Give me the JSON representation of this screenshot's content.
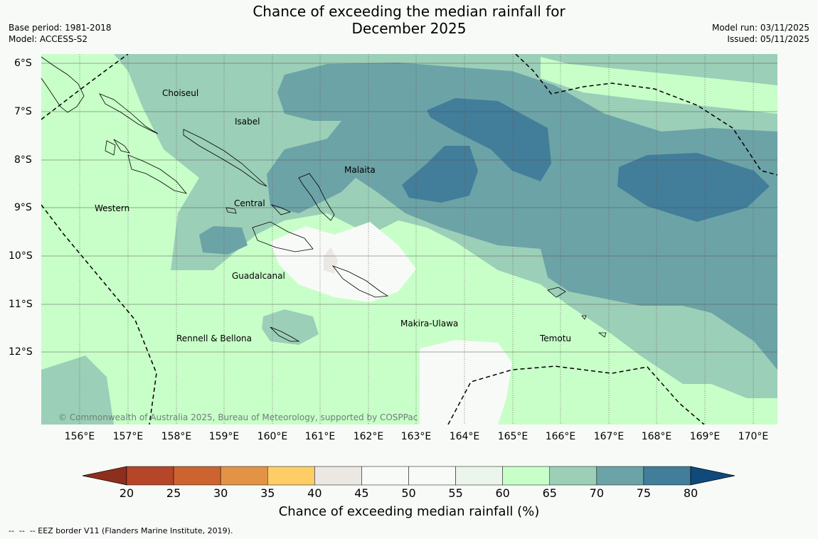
{
  "title": {
    "line1": "Chance of exceeding the median rainfall for",
    "line2": "December 2025"
  },
  "meta": {
    "base_period": "Base period: 1981-2018",
    "model": "Model: ACCESS-S2",
    "model_run": "Model run: 03/11/2025",
    "issued": "Issued: 05/11/2025"
  },
  "map": {
    "lat_labels": [
      "6°S",
      "7°S",
      "8°S",
      "9°S",
      "10°S",
      "11°S",
      "12°S"
    ],
    "lon_labels": [
      "156°E",
      "157°E",
      "158°E",
      "159°E",
      "160°E",
      "161°E",
      "162°E",
      "163°E",
      "164°E",
      "165°E",
      "166°E",
      "167°E",
      "168°E",
      "169°E",
      "170°E"
    ],
    "places": {
      "choiseul": "Choiseul",
      "isabel": "Isabel",
      "malaita": "Malaita",
      "western": "Western",
      "central": "Central",
      "guadalcanal": "Guadalcanal",
      "makira": "Makira-Ulawa",
      "rennell": "Rennell & Bellona",
      "temotu": "Temotu"
    },
    "copyright": "© Commonwealth of Australia 2025, Bureau of Meteorology, supported by COSPPac"
  },
  "colorbar": {
    "ticks": [
      "20",
      "25",
      "30",
      "35",
      "40",
      "45",
      "50",
      "55",
      "60",
      "65",
      "70",
      "75",
      "80"
    ],
    "colors": [
      "#8e2e1c",
      "#b5462a",
      "#cd6331",
      "#e29346",
      "#ffcd66",
      "#ebe8e4",
      "#f8faf8",
      "#f8faf8",
      "#ebf5eb",
      "#c8ffc8",
      "#9bcfb8",
      "#6ca3a7",
      "#427d9a",
      "#0f4a7b"
    ],
    "title": "Chance of exceeding median rainfall (%)"
  },
  "footer": {
    "eez": "--  --  -- EEZ border V11 (Flanders Marine Institute, 2019)."
  }
}
